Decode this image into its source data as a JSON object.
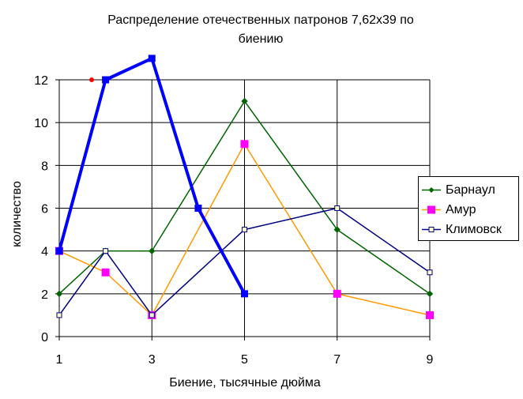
{
  "chart_data": {
    "type": "line",
    "title_line1": "Распределение отечественных патронов 7,62х39 по",
    "title_line2": "биению",
    "xlabel": "Биение, тысячные дюйма",
    "ylabel": "количество",
    "xlim": [
      1,
      9
    ],
    "ylim": [
      0,
      12
    ],
    "x_ticks": [
      1,
      3,
      5,
      7,
      9
    ],
    "y_ticks": [
      0,
      2,
      4,
      6,
      8,
      10,
      12
    ],
    "grid": true,
    "legend_position": "right",
    "series": [
      {
        "name": "Барнаул",
        "color": "#006400",
        "marker": "diamond",
        "x": [
          1,
          2,
          3,
          5,
          7,
          9
        ],
        "values": [
          2,
          4,
          4,
          11,
          5,
          2
        ]
      },
      {
        "name": "Амур",
        "color": "#FF9900",
        "marker": "square-filled",
        "marker_color": "#FF00FF",
        "x": [
          1,
          2,
          3,
          5,
          7,
          9
        ],
        "values": [
          4,
          3,
          1,
          9,
          2,
          1
        ]
      },
      {
        "name": "Климовск",
        "color": "#000080",
        "marker": "square-open",
        "marker_color": "#FFFFCC",
        "x": [
          1,
          2,
          3,
          5,
          7,
          9
        ],
        "values": [
          1,
          4,
          1,
          5,
          6,
          3
        ]
      },
      {
        "color": "#0000FF",
        "marker": "square",
        "thick": true,
        "x": [
          1,
          2,
          3,
          4,
          5
        ],
        "values": [
          4,
          12,
          13,
          6,
          2
        ]
      }
    ],
    "annotations": [
      {
        "type": "point",
        "color": "#FF0000",
        "x": 1.7,
        "y": 12
      }
    ]
  }
}
